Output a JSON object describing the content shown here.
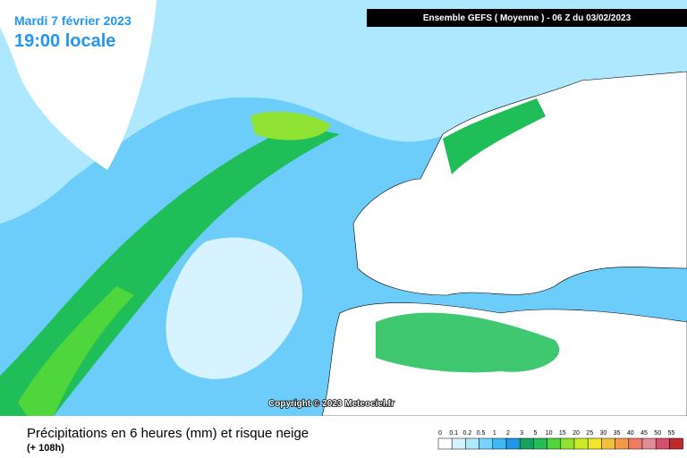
{
  "header": {
    "date": "Mardi 7 février 2023",
    "time": "19:00 locale",
    "run": "Ensemble GEFS  ( Moyenne )  -  06 Z du 03/02/2023"
  },
  "copyright": "Copyright © 2023 Meteociel.fr",
  "footer": {
    "title": "Précipitations en 6 heures (mm) et risque neige",
    "lead": "(+ 108h)"
  },
  "legend": {
    "labels": [
      "0",
      "0.1",
      "0.2",
      "0.5",
      "1",
      "2",
      "3",
      "5",
      "10",
      "15",
      "20",
      "25",
      "30",
      "35",
      "40",
      "45",
      "50",
      "55"
    ],
    "colors": [
      "#ffffff",
      "#d6f3ff",
      "#aee8ff",
      "#74d3ff",
      "#40b8f4",
      "#1f97e6",
      "#14a05e",
      "#1fbe58",
      "#4fd63c",
      "#8fe232",
      "#c9ea2a",
      "#f2e62a",
      "#f4c23a",
      "#f39a48",
      "#ee7a64",
      "#e08c9a",
      "#d4506a",
      "#c0282c"
    ]
  }
}
